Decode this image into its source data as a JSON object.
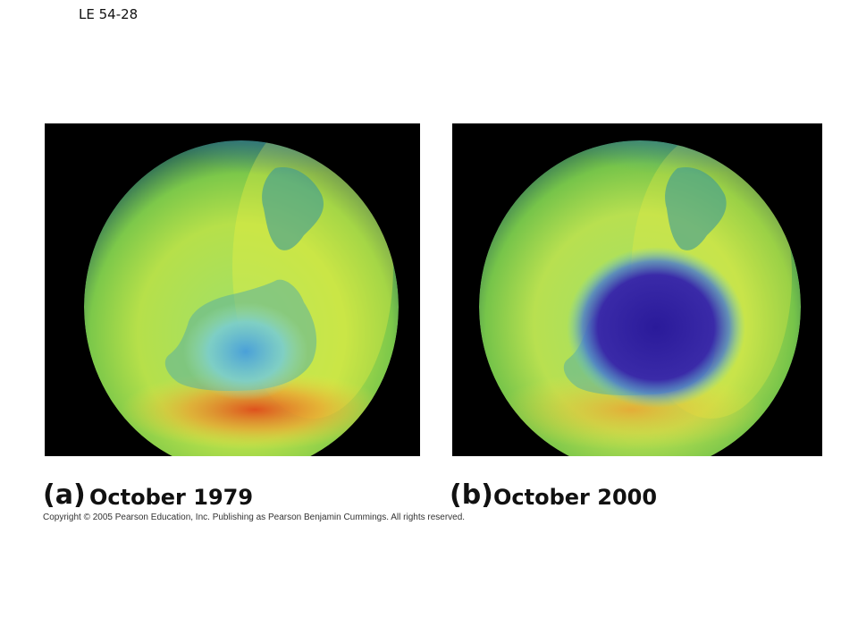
{
  "slide": {
    "label": "LE 54-28"
  },
  "panels": [
    {
      "letter": "(a)",
      "date": "October 1979",
      "ozone_hole": "small"
    },
    {
      "letter": "(b)",
      "date": "October 2000",
      "ozone_hole": "large"
    }
  ],
  "copyright": "Copyright © 2005 Pearson Education, Inc. Publishing as Pearson Benjamin Cummings. All rights reserved.",
  "colors": {
    "background": "#000000",
    "high_ozone": "#e04a1a",
    "mid_ozone": "#8fd23a",
    "low_ozone": "#2a1a9a"
  }
}
